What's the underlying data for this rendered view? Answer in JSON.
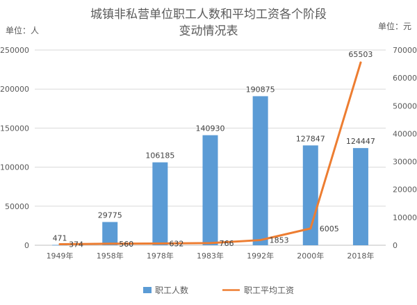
{
  "chart_data": {
    "type": "bar",
    "title_lines": [
      "城镇非私营单位职工人数和平均工资各个阶段",
      "变动情况表"
    ],
    "left_unit": "单位：人",
    "right_unit": "单位：元",
    "categories": [
      "1949年",
      "1958年",
      "1978年",
      "1983年",
      "1992年",
      "2000年",
      "2018年"
    ],
    "left_axis": {
      "min": 0,
      "max": 250000,
      "ticks": [
        0,
        50000,
        100000,
        150000,
        200000,
        250000
      ]
    },
    "right_axis": {
      "min": 0,
      "max": 70000,
      "ticks": [
        0,
        10000,
        20000,
        30000,
        40000,
        50000,
        60000,
        70000
      ]
    },
    "series": [
      {
        "name": "职工人数",
        "type": "bar",
        "axis": "left",
        "color": "#5B9BD5",
        "values": [
          471,
          29775,
          106185,
          140930,
          190875,
          127847,
          124447
        ]
      },
      {
        "name": "职工平均工资",
        "type": "line",
        "axis": "right",
        "color": "#ED7D31",
        "values": [
          374,
          560,
          632,
          766,
          1853,
          6005,
          65503
        ]
      }
    ],
    "grid": true,
    "legend_position": "bottom"
  }
}
